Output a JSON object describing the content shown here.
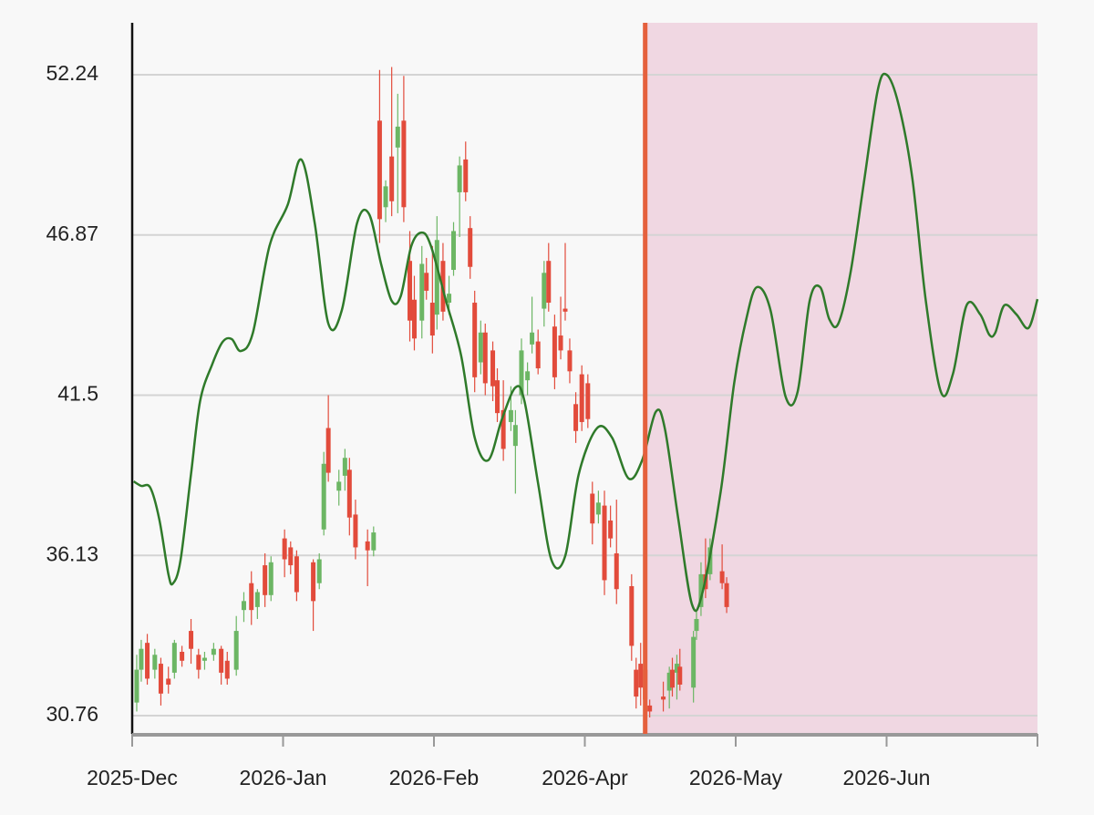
{
  "chart_data": {
    "type": "candlestick",
    "xlim": [
      0,
      6
    ],
    "xticks": [
      {
        "value": 0,
        "label": "2025-Dec"
      },
      {
        "value": 1,
        "label": "2026-Jan"
      },
      {
        "value": 2,
        "label": "2026-Feb"
      },
      {
        "value": 3,
        "label": "2026-Apr"
      },
      {
        "value": 4,
        "label": "2026-May"
      },
      {
        "value": 5,
        "label": "2026-Jun"
      }
    ],
    "ylim": [
      30.15,
      53.98
    ],
    "yticks": [
      30.76,
      36.13,
      41.5,
      46.87,
      52.24
    ],
    "grid": true,
    "forecast_start": 3.4,
    "forecast_color": "#f0d7e2",
    "forecast_line_color": "#e5603d",
    "up_color": "#6cb664",
    "down_color": "#e24b3b",
    "candles": {
      "x": [
        0.03,
        0.06,
        0.1,
        0.15,
        0.19,
        0.24,
        0.28,
        0.33,
        0.39,
        0.44,
        0.48,
        0.54,
        0.59,
        0.63,
        0.69,
        0.74,
        0.79,
        0.83,
        0.88,
        0.92,
        1.01,
        1.05,
        1.09,
        1.2,
        1.24,
        1.27,
        1.3,
        1.37,
        1.41,
        1.44,
        1.48,
        1.56,
        1.6,
        1.64,
        1.68,
        1.72,
        1.76,
        1.8,
        1.84,
        1.87,
        1.92,
        1.95,
        1.99,
        2.02,
        2.06,
        2.1,
        2.13,
        2.17,
        2.21,
        2.24,
        2.27,
        2.31,
        2.34,
        2.39,
        2.42,
        2.46,
        2.51,
        2.54,
        2.58,
        2.62,
        2.65,
        2.69,
        2.73,
        2.76,
        2.8,
        2.84,
        2.87,
        2.9,
        2.94,
        2.98,
        3.02,
        3.05,
        3.09,
        3.13,
        3.17,
        3.21,
        3.31,
        3.34,
        3.37,
        3.4,
        3.43,
        3.52,
        3.56,
        3.58,
        3.61,
        3.63,
        3.72,
        3.74,
        3.77,
        3.8,
        3.83,
        3.91,
        3.94
      ],
      "open": [
        31.2,
        32.3,
        33.2,
        32.3,
        32.5,
        32.0,
        32.2,
        32.9,
        33.6,
        32.8,
        32.6,
        32.8,
        33.0,
        32.6,
        32.3,
        34.3,
        35.2,
        34.4,
        35.8,
        34.8,
        36.7,
        36.4,
        36.1,
        35.9,
        35.2,
        37.0,
        40.4,
        38.3,
        38.8,
        39.0,
        37.5,
        36.6,
        36.3,
        50.7,
        47.8,
        49.5,
        49.8,
        50.7,
        46.0,
        44.7,
        44.0,
        45.6,
        44.6,
        44.2,
        46.0,
        44.6,
        45.7,
        48.3,
        49.4,
        47.1,
        44.6,
        42.6,
        43.6,
        43.0,
        42.0,
        41.0,
        40.6,
        39.8,
        41.5,
        42.0,
        43.2,
        43.3,
        44.4,
        46.0,
        43.8,
        43.5,
        44.4,
        43.0,
        41.2,
        42.2,
        41.9,
        38.2,
        37.5,
        37.8,
        37.3,
        36.2,
        35.1,
        32.3,
        32.5,
        32.3,
        31.1,
        31.4,
        31.6,
        32.3,
        32.2,
        32.4,
        31.7,
        33.6,
        34.4,
        35.5,
        35.5,
        35.6,
        35.2
      ],
      "high": [
        32.8,
        33.3,
        33.5,
        33.0,
        32.7,
        32.4,
        33.3,
        33.1,
        34.0,
        33.0,
        32.9,
        33.2,
        33.1,
        32.9,
        34.1,
        34.9,
        35.6,
        35.0,
        36.2,
        36.1,
        37.0,
        36.6,
        36.3,
        36.0,
        36.2,
        39.6,
        41.5,
        39.0,
        39.7,
        39.4,
        38.0,
        37.0,
        37.1,
        52.4,
        48.7,
        52.5,
        51.6,
        52.2,
        47.0,
        45.5,
        46.5,
        46.1,
        46.5,
        47.5,
        46.6,
        45.5,
        47.3,
        49.5,
        50.0,
        47.5,
        45.0,
        44.0,
        43.9,
        43.3,
        42.4,
        42.0,
        41.8,
        41.0,
        43.4,
        42.6,
        44.8,
        43.7,
        46.0,
        46.6,
        44.2,
        44.8,
        46.6,
        43.4,
        41.6,
        42.5,
        42.2,
        38.6,
        38.3,
        38.3,
        37.8,
        38.0,
        35.5,
        32.7,
        33.2,
        33.6,
        31.3,
        31.9,
        32.4,
        32.7,
        32.8,
        33.0,
        33.6,
        34.3,
        35.9,
        36.7,
        36.7,
        36.5,
        35.4
      ],
      "low": [
        30.9,
        31.9,
        31.8,
        32.0,
        31.1,
        31.5,
        32.0,
        32.4,
        32.5,
        32.0,
        32.3,
        32.6,
        31.8,
        31.8,
        32.1,
        33.9,
        33.8,
        34.0,
        34.4,
        34.6,
        35.4,
        35.5,
        34.6,
        33.6,
        35.0,
        36.8,
        38.6,
        37.8,
        38.3,
        36.8,
        36.0,
        35.1,
        36.1,
        46.6,
        47.3,
        47.5,
        47.6,
        47.3,
        43.3,
        43.0,
        43.4,
        44.7,
        42.9,
        43.7,
        44.0,
        44.2,
        45.5,
        46.8,
        48.0,
        45.4,
        41.6,
        42.2,
        41.5,
        41.3,
        40.6,
        39.3,
        40.3,
        38.2,
        41.2,
        41.5,
        42.9,
        42.2,
        43.8,
        44.3,
        41.7,
        42.7,
        44.0,
        41.9,
        39.9,
        40.3,
        40.4,
        36.5,
        37.2,
        34.8,
        36.4,
        34.5,
        32.6,
        31.0,
        31.1,
        30.9,
        30.7,
        30.9,
        31.0,
        31.4,
        31.3,
        31.6,
        31.2,
        33.3,
        34.1,
        34.7,
        35.3,
        35.0,
        34.2
      ],
      "close": [
        32.3,
        33.0,
        32.0,
        32.8,
        31.5,
        31.8,
        33.2,
        32.6,
        33.0,
        32.3,
        32.7,
        33.0,
        32.2,
        32.0,
        33.6,
        34.6,
        34.3,
        34.9,
        34.8,
        35.9,
        36.0,
        35.8,
        34.9,
        34.6,
        36.0,
        39.2,
        38.9,
        38.6,
        39.4,
        37.4,
        36.4,
        36.3,
        36.9,
        47.4,
        48.5,
        48.0,
        50.5,
        47.8,
        44.0,
        43.4,
        45.9,
        45.0,
        43.5,
        46.7,
        44.3,
        44.9,
        47.0,
        49.2,
        48.3,
        45.8,
        42.1,
        43.6,
        41.9,
        41.8,
        40.9,
        39.7,
        41.0,
        40.5,
        43.0,
        42.3,
        43.6,
        42.4,
        45.6,
        44.6,
        42.1,
        43.0,
        44.3,
        42.3,
        40.3,
        40.6,
        40.7,
        37.2,
        37.9,
        35.3,
        36.7,
        35.0,
        33.1,
        31.4,
        31.7,
        31.3,
        30.9,
        31.3,
        32.2,
        31.7,
        32.5,
        31.8,
        33.4,
        34.0,
        35.5,
        35.0,
        36.4,
        35.2,
        34.4
      ]
    },
    "series": [
      {
        "color": "#2f7a2a",
        "x": [
          0.01,
          0.06,
          0.12,
          0.18,
          0.24,
          0.27,
          0.32,
          0.39,
          0.45,
          0.53,
          0.6,
          0.66,
          0.72,
          0.8,
          0.91,
          1.03,
          1.12,
          1.21,
          1.3,
          1.39,
          1.49,
          1.57,
          1.65,
          1.72,
          1.78,
          1.85,
          1.92,
          1.98,
          2.08,
          2.18,
          2.27,
          2.36,
          2.45,
          2.54,
          2.6,
          2.69,
          2.78,
          2.87,
          2.96,
          3.08,
          3.18,
          3.29,
          3.38,
          3.47,
          3.53,
          3.62,
          3.71,
          3.78,
          3.9,
          3.99,
          4.07,
          4.14,
          4.23,
          4.33,
          4.41,
          4.49,
          4.56,
          4.62,
          4.68,
          4.76,
          4.85,
          4.94,
          5.0,
          5.08,
          5.17,
          5.26,
          5.36,
          5.44,
          5.53,
          5.62,
          5.68,
          5.72,
          5.78,
          5.86,
          5.94,
          6.0
        ],
        "values": [
          38.61,
          38.46,
          38.4,
          37.33,
          35.5,
          35.19,
          35.96,
          38.86,
          41.3,
          42.53,
          43.29,
          43.38,
          42.98,
          43.59,
          46.5,
          47.87,
          49.4,
          47.26,
          43.9,
          44.36,
          47.26,
          47.57,
          45.89,
          44.66,
          44.82,
          46.5,
          46.95,
          46.5,
          44.66,
          42.83,
          40.08,
          39.32,
          40.69,
          41.76,
          41.3,
          38.55,
          35.96,
          36.11,
          38.86,
          40.39,
          40.08,
          38.71,
          39.32,
          40.94,
          40.39,
          37.33,
          34.49,
          34.89,
          38.25,
          41.91,
          44.05,
          45.12,
          44.36,
          41.46,
          41.61,
          44.66,
          45.12,
          44.05,
          43.9,
          45.58,
          48.64,
          51.69,
          52.24,
          51.23,
          48.79,
          44.66,
          41.61,
          42.22,
          44.51,
          44.21,
          43.53,
          43.59,
          44.51,
          44.21,
          43.75,
          44.72
        ]
      }
    ]
  }
}
